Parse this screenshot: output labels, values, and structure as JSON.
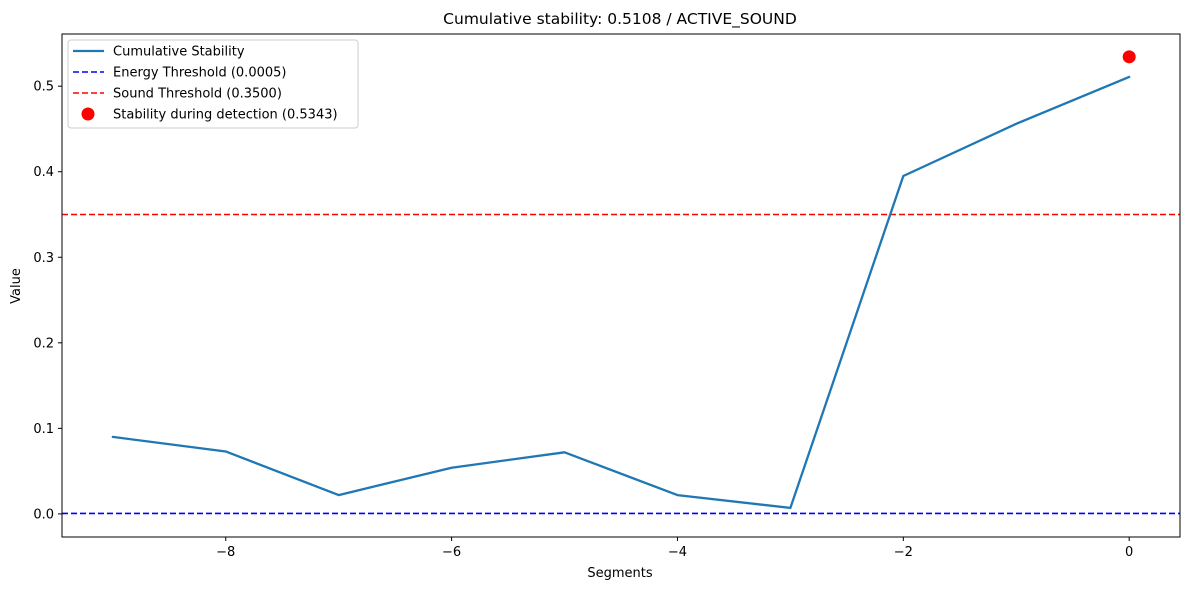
{
  "chart_data": {
    "type": "line",
    "title": "Cumulative stability: 0.5108 / ACTIVE_SOUND",
    "xlabel": "Segments",
    "ylabel": "Value",
    "xlim": [
      -9.45,
      0.45
    ],
    "ylim": [
      -0.027,
      0.561
    ],
    "xticks": [
      -8,
      -6,
      -4,
      -2,
      0
    ],
    "xtick_labels": [
      "−8",
      "−6",
      "−4",
      "−2",
      "0"
    ],
    "yticks": [
      0.0,
      0.1,
      0.2,
      0.3,
      0.4,
      0.5
    ],
    "ytick_labels": [
      "0.0",
      "0.1",
      "0.2",
      "0.3",
      "0.4",
      "0.5"
    ],
    "series": [
      {
        "name": "Cumulative Stability",
        "color": "#1f77b4",
        "x": [
          -9,
          -8,
          -7,
          -6,
          -5,
          -4,
          -3,
          -2,
          -1,
          0
        ],
        "y": [
          0.09,
          0.073,
          0.022,
          0.054,
          0.072,
          0.022,
          0.007,
          0.395,
          0.456,
          0.5108
        ]
      }
    ],
    "hlines": [
      {
        "name": "Energy Threshold (0.0005)",
        "y": 0.0005,
        "color": "#0000ff",
        "style": "dashed"
      },
      {
        "name": "Sound Threshold (0.3500)",
        "y": 0.35,
        "color": "#ff0000",
        "style": "dashed"
      }
    ],
    "points": [
      {
        "name": "Stability during detection (0.5343)",
        "x": 0,
        "y": 0.5343,
        "color": "#ff0000"
      }
    ],
    "legend": {
      "position": "top-left",
      "entries": [
        {
          "label": "Cumulative Stability",
          "kind": "line",
          "color": "#1f77b4"
        },
        {
          "label": "Energy Threshold (0.0005)",
          "kind": "dashed",
          "color": "#0000ff"
        },
        {
          "label": "Sound Threshold (0.3500)",
          "kind": "dashed",
          "color": "#ff0000"
        },
        {
          "label": "Stability during detection (0.5343)",
          "kind": "marker",
          "color": "#ff0000"
        }
      ]
    },
    "grid": false
  }
}
